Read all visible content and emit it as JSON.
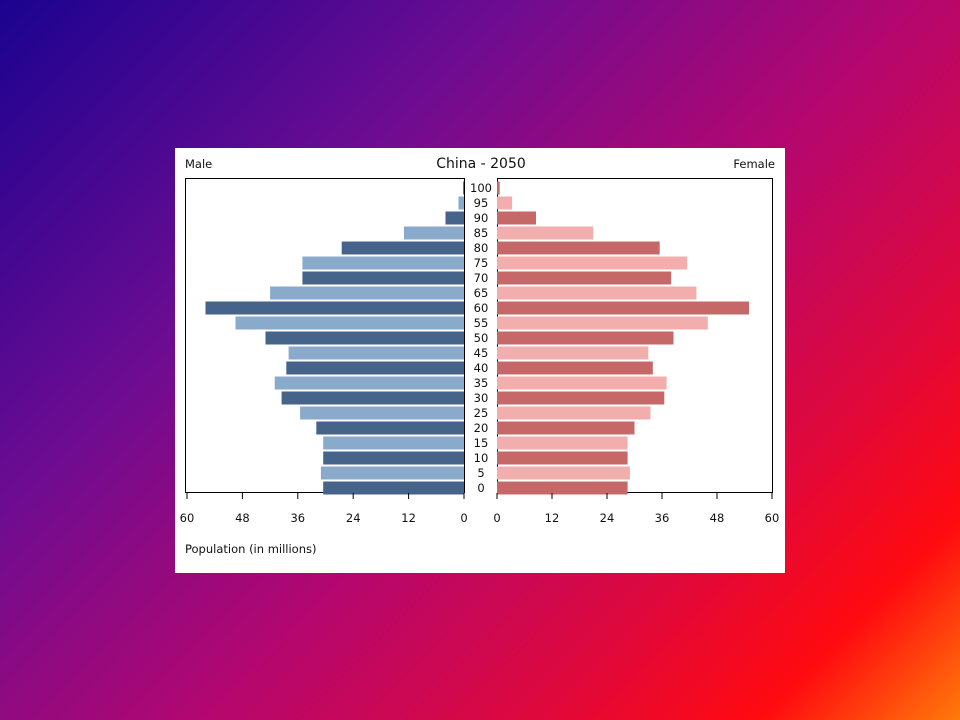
{
  "chart_data": {
    "type": "bar",
    "orientation": "horizontal",
    "subtype": "population-pyramid",
    "title": "China - 2050",
    "left_label": "Male",
    "right_label": "Female",
    "xlabel": "Population (in millions)",
    "xlim": [
      0,
      60
    ],
    "x_ticks": [
      0,
      12,
      24,
      36,
      48,
      60
    ],
    "categories": [
      "0",
      "5",
      "10",
      "15",
      "20",
      "25",
      "30",
      "35",
      "40",
      "45",
      "50",
      "55",
      "60",
      "65",
      "70",
      "75",
      "80",
      "85",
      "90",
      "95",
      "100"
    ],
    "series": [
      {
        "name": "Male",
        "colors": [
          "#46648a",
          "#8aaacc"
        ],
        "values": [
          30.5,
          31,
          30.5,
          30.5,
          32,
          35.5,
          39.5,
          41,
          38.5,
          38,
          43,
          49.5,
          56,
          42,
          35,
          35,
          26.5,
          13,
          4,
          1.2,
          0.2
        ]
      },
      {
        "name": "Female",
        "colors": [
          "#c66868",
          "#f2adad"
        ],
        "values": [
          28.5,
          29,
          28.5,
          28.5,
          30,
          33.5,
          36.5,
          37,
          34,
          33,
          38.5,
          46,
          55,
          43.5,
          38,
          41.5,
          35.5,
          21,
          8.5,
          3.3,
          0.6
        ]
      }
    ],
    "grid": false,
    "legend": "none"
  }
}
